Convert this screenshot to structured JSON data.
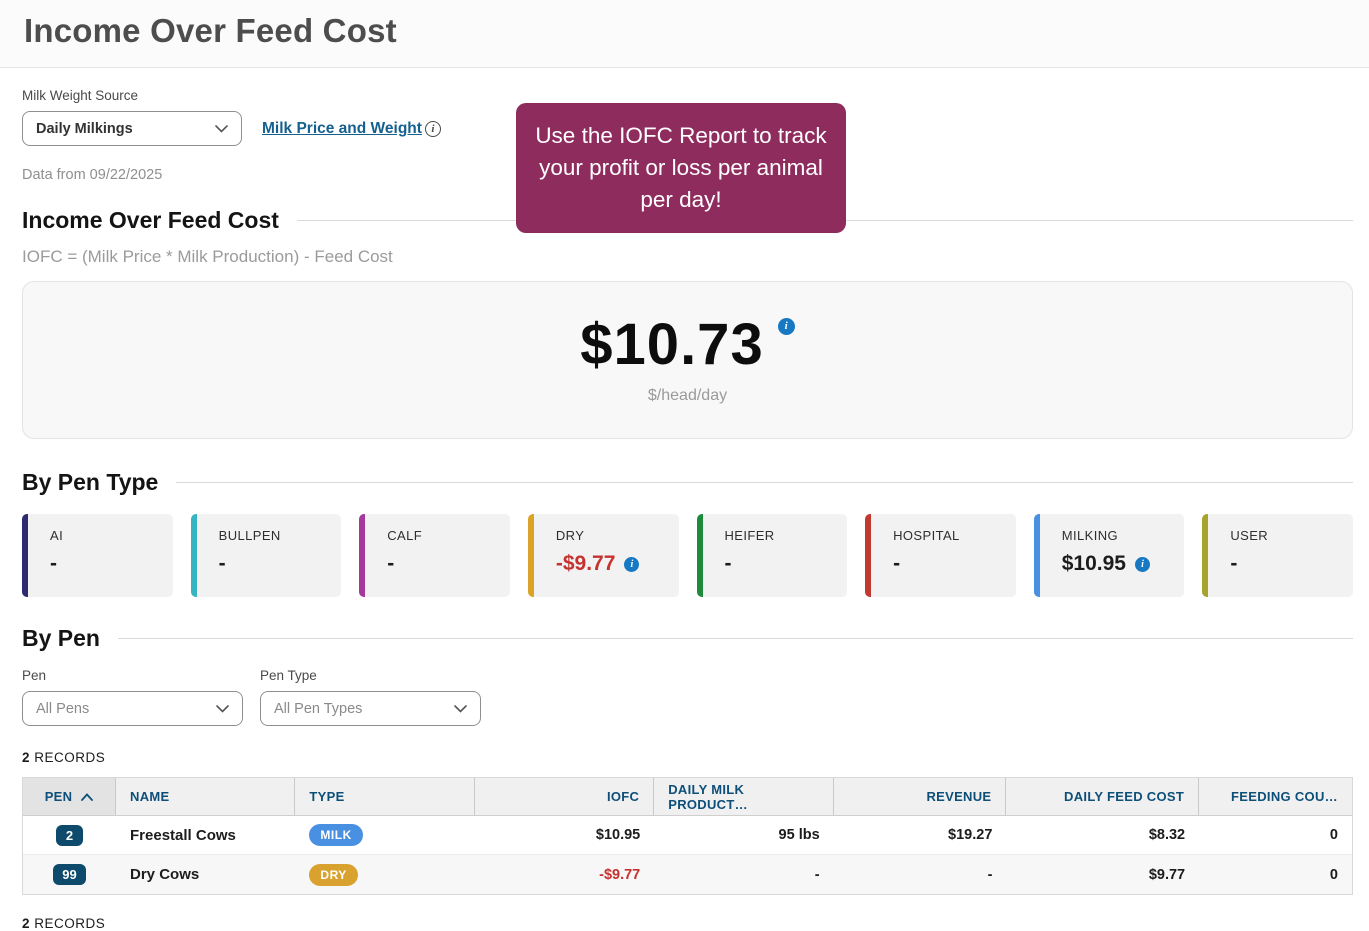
{
  "page": {
    "title": "Income Over Feed Cost"
  },
  "controls": {
    "milk_weight_source_label": "Milk Weight Source",
    "milk_weight_source_value": "Daily Milkings",
    "milk_price_link_label": "Milk Price and Weight",
    "data_from": "Data from 09/22/2025"
  },
  "tooltip": {
    "text": "Use the IOFC Report to track your profit or loss per animal per day!",
    "bg": "#8e2c5e"
  },
  "iofc": {
    "section_title": "Income Over Feed Cost",
    "formula": "IOFC = (Milk Price * Milk Production) - Feed Cost",
    "value": "$10.73",
    "unit": "$/head/day"
  },
  "by_pen_type": {
    "section_title": "By Pen Type",
    "cards": [
      {
        "label": "AI",
        "value": "-",
        "accent": "#2e2a72",
        "negative": false,
        "has_info": false
      },
      {
        "label": "BULLPEN",
        "value": "-",
        "accent": "#35b5c1",
        "negative": false,
        "has_info": false
      },
      {
        "label": "CALF",
        "value": "-",
        "accent": "#a4399b",
        "negative": false,
        "has_info": false
      },
      {
        "label": "DRY",
        "value": "-$9.77",
        "accent": "#dba428",
        "negative": true,
        "has_info": true
      },
      {
        "label": "HEIFER",
        "value": "-",
        "accent": "#1f8a3c",
        "negative": false,
        "has_info": false
      },
      {
        "label": "HOSPITAL",
        "value": "-",
        "accent": "#c13a32",
        "negative": false,
        "has_info": false
      },
      {
        "label": "MILKING",
        "value": "$10.95",
        "accent": "#4a90e2",
        "negative": false,
        "has_info": true
      },
      {
        "label": "USER",
        "value": "-",
        "accent": "#a8a32c",
        "negative": false,
        "has_info": false
      }
    ]
  },
  "by_pen": {
    "section_title": "By Pen",
    "pen_filter_label": "Pen",
    "pen_filter_value": "All Pens",
    "pen_type_filter_label": "Pen Type",
    "pen_type_filter_value": "All Pen Types",
    "records_count": "2",
    "records_word": "RECORDS"
  },
  "table": {
    "columns": [
      {
        "key": "pen",
        "label": "PEN",
        "sorted": "asc"
      },
      {
        "key": "name",
        "label": "NAME"
      },
      {
        "key": "type",
        "label": "TYPE"
      },
      {
        "key": "iofc",
        "label": "IOFC"
      },
      {
        "key": "daily_milk",
        "label": "DAILY MILK PRODUCT…"
      },
      {
        "key": "revenue",
        "label": "REVENUE"
      },
      {
        "key": "daily_feed_cost",
        "label": "DAILY FEED COST"
      },
      {
        "key": "feeding_count",
        "label": "FEEDING COU…"
      }
    ],
    "rows": [
      {
        "pen": "2",
        "name": "Freestall Cows",
        "type": "MILK",
        "type_color": "#4a90e2",
        "iofc": "$10.95",
        "iofc_negative": false,
        "daily_milk": "95 lbs",
        "revenue": "$19.27",
        "daily_feed_cost": "$8.32",
        "feeding_count": "0"
      },
      {
        "pen": "99",
        "name": "Dry Cows",
        "type": "DRY",
        "type_color": "#d9a22e",
        "iofc": "-$9.77",
        "iofc_negative": true,
        "daily_milk": "-",
        "revenue": "-",
        "daily_feed_cost": "$9.77",
        "feeding_count": "0"
      }
    ]
  },
  "colors": {
    "info_icon": "#1779c4",
    "negative_value": "#c5322f",
    "pen_badge": "#0d4a6b",
    "table_header_text": "#0d4f79",
    "link": "#15608f"
  },
  "icons": {
    "info_glyph": "i"
  }
}
